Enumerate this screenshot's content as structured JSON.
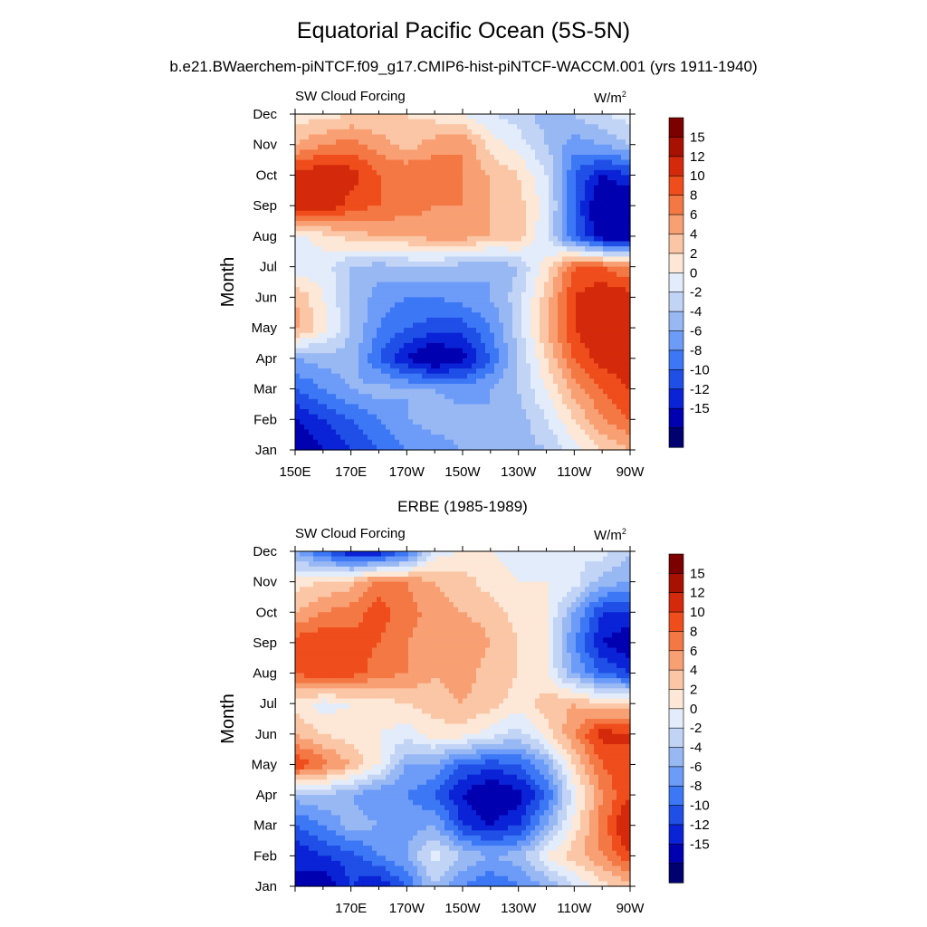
{
  "figure": {
    "title": "Equatorial Pacific Ocean (5S-5N)",
    "subtitle": "b.e21.BWaerchem-piNTCF.f09_g17.CMIP6-hist-piNTCF-WACCM.001 (yrs 1911-1940)"
  },
  "chart_data": [
    {
      "type": "heatmap",
      "panel": "model",
      "title": "",
      "left_label": "SW Cloud Forcing",
      "units": "W/m2",
      "units_base": "W/m",
      "units_sup": "2",
      "ylabel": "Month",
      "xlabel": "",
      "x_ticks": [
        "150E",
        "170E",
        "170W",
        "150W",
        "130W",
        "110W",
        "90W"
      ],
      "x_tick_lons": [
        150,
        170,
        190,
        210,
        230,
        250,
        270
      ],
      "xlim": [
        150,
        270
      ],
      "y_ticks": [
        "Jan",
        "Feb",
        "Mar",
        "Apr",
        "May",
        "Jun",
        "Jul",
        "Aug",
        "Sep",
        "Oct",
        "Nov",
        "Dec"
      ],
      "grid_lons": [
        150,
        160,
        170,
        180,
        190,
        200,
        210,
        220,
        230,
        240,
        250,
        260,
        270
      ],
      "values": [
        [
          -15,
          -12,
          -10,
          -8,
          -6,
          -5,
          -4,
          -4,
          -3,
          -2,
          1,
          4,
          6
        ],
        [
          -12,
          -10,
          -8,
          -6,
          -4,
          -3,
          -3,
          -4,
          -3,
          0,
          4,
          8,
          10
        ],
        [
          -8,
          -6,
          -4,
          -3,
          -4,
          -4,
          -5,
          -4,
          -2,
          2,
          7,
          10,
          12
        ],
        [
          -4,
          -3,
          -3,
          -8,
          -12,
          -15,
          -13,
          -8,
          -2,
          4,
          10,
          13,
          14
        ],
        [
          7,
          3,
          -2,
          -6,
          -8,
          -9,
          -9,
          -6,
          -1,
          6,
          12,
          15,
          14
        ],
        [
          6,
          2,
          -2,
          -5,
          -6,
          -6,
          -5,
          -4,
          -1,
          5,
          12,
          14,
          13
        ],
        [
          0,
          1,
          -2,
          -3,
          -2,
          -2,
          -3,
          -4,
          -2,
          3,
          10,
          10,
          8
        ],
        [
          1,
          3,
          5,
          6,
          6,
          7,
          7,
          6,
          5,
          0,
          -8,
          -14,
          -15
        ],
        [
          13,
          14,
          11,
          10,
          9,
          8,
          8,
          6,
          5,
          1,
          -8,
          -15,
          -15
        ],
        [
          13,
          14,
          13,
          10,
          10,
          10,
          8,
          6,
          4,
          0,
          -8,
          -12,
          -10
        ],
        [
          6,
          8,
          9,
          7,
          5,
          7,
          8,
          3,
          1,
          -2,
          -5,
          -4,
          -2
        ],
        [
          3,
          3,
          4,
          4,
          4,
          3,
          2,
          0,
          -1,
          -3,
          -2,
          0,
          1
        ]
      ],
      "levels": [
        -15,
        -12,
        -10,
        -8,
        -6,
        -4,
        -2,
        0,
        2,
        4,
        6,
        8,
        10,
        12,
        15
      ],
      "colorbar_labels": [
        "15",
        "12",
        "10",
        "8",
        "6",
        "4",
        "2",
        "0",
        "-2",
        "-4",
        "-6",
        "-8",
        "-10",
        "-12",
        "-15"
      ],
      "colors": [
        "#00006f",
        "#0000b1",
        "#0a23d6",
        "#1f4fe6",
        "#3c78f5",
        "#6c9bf8",
        "#98b8f4",
        "#c2d4f6",
        "#e3ecfa",
        "#fde7d6",
        "#fbc6a5",
        "#f8a073",
        "#f47844",
        "#ef4d1c",
        "#d42a0b",
        "#a81102",
        "#7c0000"
      ]
    },
    {
      "type": "heatmap",
      "panel": "observations",
      "title": "ERBE (1985-1989)",
      "left_label": "SW Cloud Forcing",
      "units": "W/m2",
      "units_base": "W/m",
      "units_sup": "2",
      "ylabel": "Month",
      "xlabel": "",
      "x_ticks": [
        "170E",
        "170W",
        "150W",
        "130W",
        "110W",
        "90W"
      ],
      "x_tick_lons": [
        170,
        190,
        210,
        230,
        250,
        270
      ],
      "xlim": [
        150,
        270
      ],
      "y_ticks": [
        "Jan",
        "Feb",
        "Mar",
        "Apr",
        "May",
        "Jun",
        "Jul",
        "Aug",
        "Sep",
        "Oct",
        "Nov",
        "Dec"
      ],
      "grid_lons": [
        150,
        160,
        170,
        180,
        190,
        200,
        210,
        220,
        230,
        240,
        250,
        260,
        270
      ],
      "values": [
        [
          -12,
          -14,
          -10,
          -12,
          -8,
          -2,
          -6,
          -8,
          -6,
          -4,
          0,
          3,
          5
        ],
        [
          -12,
          -10,
          -9,
          -6,
          -4,
          1,
          -2,
          -4,
          -3,
          2,
          5,
          8,
          12
        ],
        [
          -8,
          -6,
          -3,
          -4,
          -5,
          -4,
          -10,
          -12,
          -10,
          -4,
          3,
          9,
          15
        ],
        [
          -3,
          -2,
          -4,
          -6,
          -6,
          -8,
          -12,
          -15,
          -13,
          -8,
          1,
          8,
          12
        ],
        [
          12,
          9,
          6,
          2,
          -4,
          -4,
          -8,
          -9,
          -8,
          -4,
          4,
          10,
          12
        ],
        [
          6,
          4,
          3,
          2,
          1,
          3,
          3,
          1,
          -1,
          3,
          8,
          13,
          12
        ],
        [
          3,
          1,
          2,
          3,
          4,
          5,
          6,
          5,
          3,
          5,
          6,
          4,
          4
        ],
        [
          10,
          12,
          11,
          9,
          8,
          6,
          7,
          5,
          4,
          2,
          -4,
          -8,
          -10
        ],
        [
          11,
          12,
          11,
          10,
          8,
          7,
          8,
          6,
          4,
          2,
          -6,
          -12,
          -14
        ],
        [
          6,
          8,
          9,
          11,
          9,
          7,
          6,
          5,
          3,
          2,
          -4,
          -10,
          -10
        ],
        [
          3,
          4,
          5,
          9,
          8,
          6,
          5,
          3,
          2,
          2,
          1,
          -3,
          -4
        ],
        [
          -4,
          -8,
          -12,
          -12,
          -8,
          1,
          2,
          2,
          1,
          1,
          0,
          1,
          -2
        ]
      ],
      "levels": [
        -15,
        -12,
        -10,
        -8,
        -6,
        -4,
        -2,
        0,
        2,
        4,
        6,
        8,
        10,
        12,
        15
      ],
      "colorbar_labels": [
        "15",
        "12",
        "10",
        "8",
        "6",
        "4",
        "2",
        "0",
        "-2",
        "-4",
        "-6",
        "-8",
        "-10",
        "-12",
        "-15"
      ],
      "colors": [
        "#00006f",
        "#0000b1",
        "#0a23d6",
        "#1f4fe6",
        "#3c78f5",
        "#6c9bf8",
        "#98b8f4",
        "#c2d4f6",
        "#e3ecfa",
        "#fde7d6",
        "#fbc6a5",
        "#f8a073",
        "#f47844",
        "#ef4d1c",
        "#d42a0b",
        "#a81102",
        "#7c0000"
      ]
    }
  ]
}
